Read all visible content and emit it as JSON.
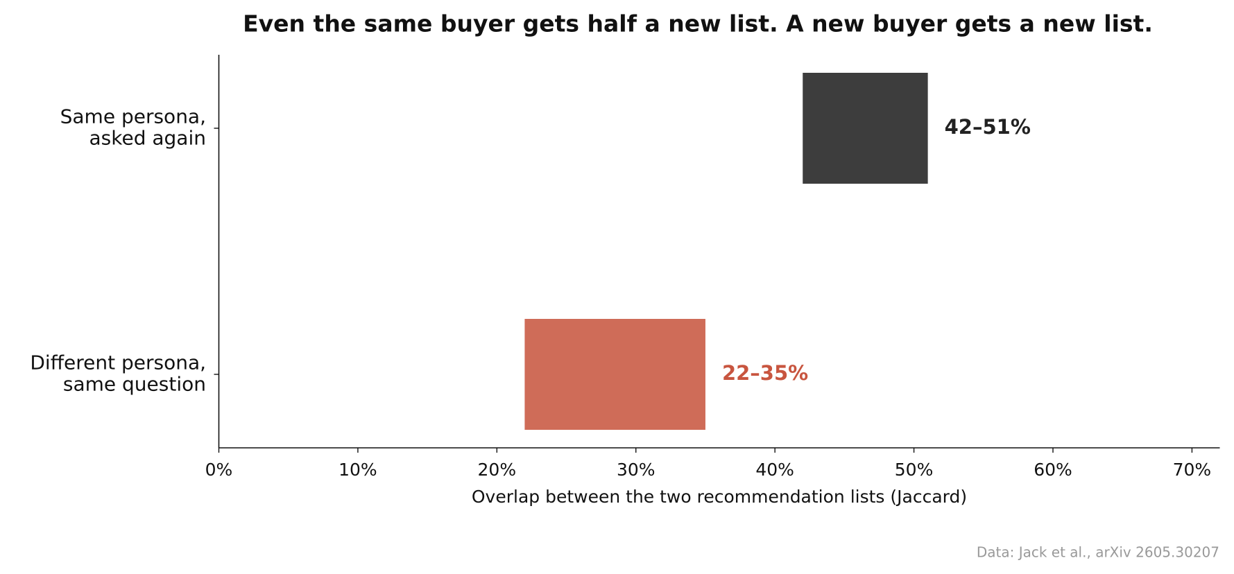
{
  "chart_data": {
    "type": "range_bar",
    "title": "Even the same buyer gets half a new list. A new buyer gets a new list.",
    "categories": [
      [
        "Same persona,",
        "asked again"
      ],
      [
        "Different persona,",
        "same question"
      ]
    ],
    "low": [
      42,
      22
    ],
    "high": [
      51,
      35
    ],
    "value_labels": [
      "42–51%",
      "22–35%"
    ],
    "colors": [
      "#3d3d3d",
      "#cf6c58"
    ],
    "label_colors": [
      "#222222",
      "#c8553f"
    ],
    "xlim": [
      0,
      72
    ],
    "xticks": [
      {
        "value": 0,
        "label": "0%"
      },
      {
        "value": 10,
        "label": "10%"
      },
      {
        "value": 20,
        "label": "20%"
      },
      {
        "value": 30,
        "label": "30%"
      },
      {
        "value": 40,
        "label": "40%"
      },
      {
        "value": 50,
        "label": "50%"
      },
      {
        "value": 60,
        "label": "60%"
      },
      {
        "value": 70,
        "label": "70%"
      }
    ],
    "xlabel": "Overlap between the two recommendation lists (Jaccard)",
    "note": "Data: Jack et al., arXiv 2605.30207",
    "grid": false
  }
}
